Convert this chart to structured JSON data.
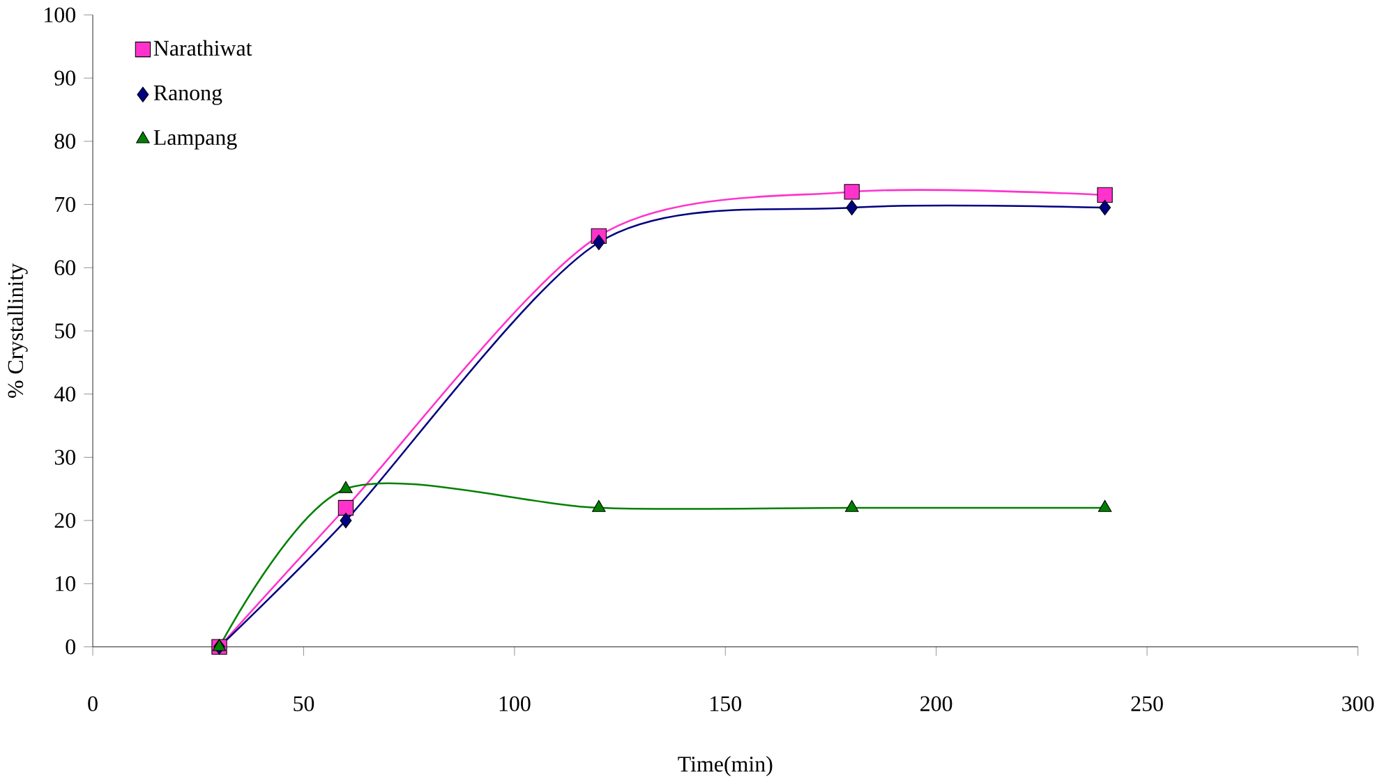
{
  "chart_data": {
    "type": "line",
    "xlabel": "Time(min)",
    "ylabel": "% Crystallinity",
    "x": [
      30,
      60,
      120,
      180,
      240
    ],
    "series": [
      {
        "name": "Narathiwat",
        "color": "#ff33cc",
        "marker": "square",
        "values": [
          0,
          22,
          65,
          72,
          71.5
        ]
      },
      {
        "name": "Ranong",
        "color": "#000080",
        "marker": "diamond",
        "values": [
          0,
          20,
          64,
          69.5,
          69.5
        ]
      },
      {
        "name": "Lampang",
        "color": "#008000",
        "marker": "triangle",
        "values": [
          0,
          25,
          22,
          22,
          22
        ]
      }
    ],
    "xlim": [
      0,
      300
    ],
    "ylim": [
      0,
      100
    ],
    "xticks": [
      0,
      50,
      100,
      150,
      200,
      250,
      300
    ],
    "yticks": [
      0,
      10,
      20,
      30,
      40,
      50,
      60,
      70,
      80,
      90,
      100
    ],
    "legend": "top left",
    "grid": false
  }
}
